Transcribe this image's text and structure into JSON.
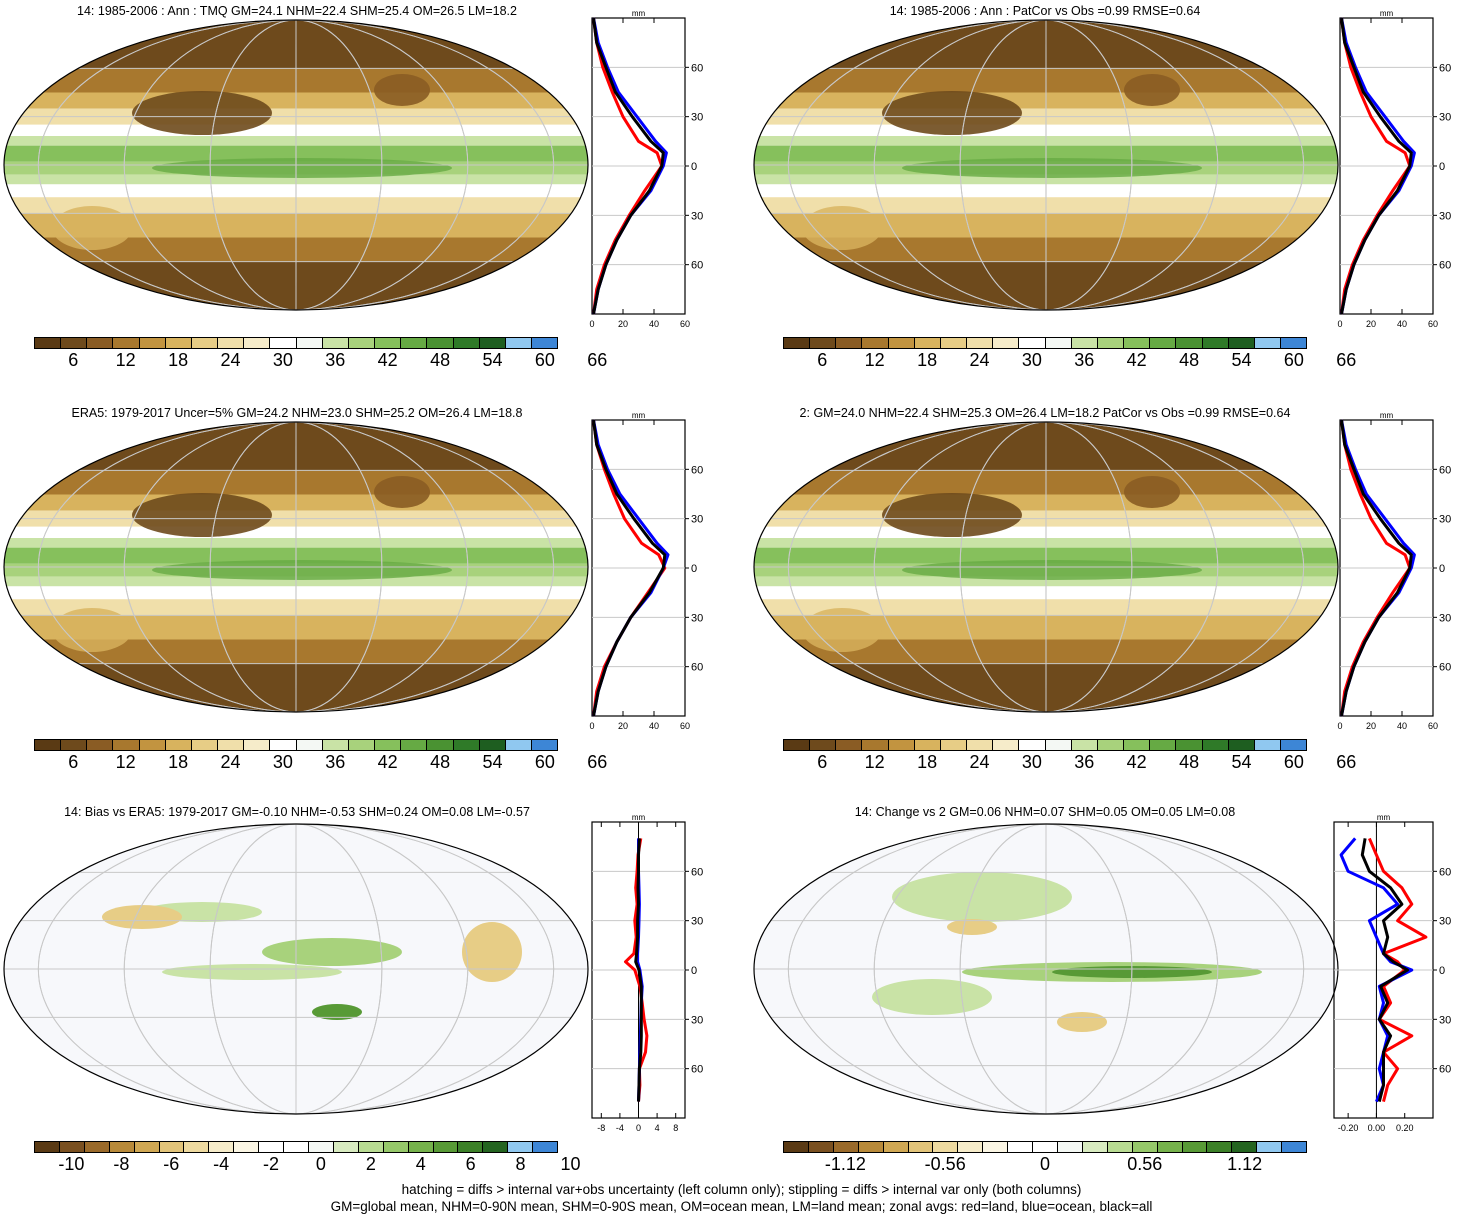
{
  "colors": {
    "land": "#ff0000",
    "ocean": "#0000ff",
    "all": "#000000"
  },
  "panels": [
    {
      "title": "14: 1985-2006 : Ann : TMQ GM=24.1 NHM=22.4 SHM=25.4 OM=26.5 LM=18.2",
      "colorbar_labels": [
        "6",
        "12",
        "18",
        "24",
        "30",
        "36",
        "42",
        "48",
        "54",
        "60",
        "66"
      ],
      "zonal": {
        "unit": "mm",
        "xticks": [
          "0",
          "20",
          "40",
          "60"
        ],
        "yticks": [
          "60N",
          "30N",
          "0",
          "30S",
          "60S"
        ]
      }
    },
    {
      "title": "14: 1985-2006 : Ann : PatCor vs Obs =0.99 RMSE=0.64",
      "colorbar_labels": [
        "6",
        "12",
        "18",
        "24",
        "30",
        "36",
        "42",
        "48",
        "54",
        "60",
        "66"
      ],
      "zonal": {
        "unit": "mm",
        "xticks": [
          "0",
          "20",
          "40",
          "60"
        ],
        "yticks": [
          "60N",
          "30N",
          "0",
          "30S",
          "60S"
        ]
      }
    },
    {
      "title": "ERA5: 1979-2017 Uncer=5% GM=24.2 NHM=23.0 SHM=25.2 OM=26.4 LM=18.8",
      "colorbar_labels": [
        "6",
        "12",
        "18",
        "24",
        "30",
        "36",
        "42",
        "48",
        "54",
        "60",
        "66"
      ],
      "zonal": {
        "unit": "mm",
        "xticks": [
          "0",
          "20",
          "40",
          "60"
        ],
        "yticks": [
          "60N",
          "30N",
          "0",
          "30S",
          "60S"
        ]
      }
    },
    {
      "title": "2: GM=24.0 NHM=22.4 SHM=25.3 OM=26.4 LM=18.2 PatCor vs Obs =0.99 RMSE=0.64",
      "colorbar_labels": [
        "6",
        "12",
        "18",
        "24",
        "30",
        "36",
        "42",
        "48",
        "54",
        "60",
        "66"
      ],
      "zonal": {
        "unit": "mm",
        "xticks": [
          "0",
          "20",
          "40",
          "60"
        ],
        "yticks": [
          "60N",
          "30N",
          "0",
          "30S",
          "60S"
        ]
      }
    },
    {
      "title": "14: Bias vs ERA5: 1979-2017 GM=-0.10 NHM=-0.53 SHM=0.24 OM=0.08 LM=-0.57",
      "colorbar_labels": [
        "-10",
        "-8",
        "-6",
        "-4",
        "-2",
        "0",
        "2",
        "4",
        "6",
        "8",
        "10"
      ],
      "zonal": {
        "unit": "mm",
        "xticks": [
          "-8",
          "-4",
          "0",
          "4",
          "8"
        ],
        "yticks": [
          "60N",
          "30N",
          "0",
          "30S",
          "60S"
        ]
      }
    },
    {
      "title": "14: Change vs 2 GM=0.06 NHM=0.07 SHM=0.05 OM=0.05 LM=0.08",
      "colorbar_labels": [
        "-1.12",
        "-0.56",
        "0",
        "0.56",
        "1.12"
      ],
      "zonal": {
        "unit": "mm",
        "xticks": [
          "-0.20",
          "0.00",
          "0.20"
        ],
        "yticks": [
          "60N",
          "30N",
          "0",
          "30S",
          "60S"
        ]
      }
    }
  ],
  "chart_data": [
    {
      "type": "line",
      "panel": "14: 1985-2006 : Ann : TMQ",
      "xlabel": "mm",
      "xlim": [
        0,
        60
      ],
      "ylim": [
        -90,
        90
      ],
      "y": [
        -90,
        -75,
        -60,
        -45,
        -30,
        -15,
        0,
        8,
        15,
        30,
        45,
        60,
        75,
        90
      ],
      "series": [
        {
          "name": "red=land",
          "values": [
            1,
            3,
            8,
            15,
            24,
            34,
            45,
            42,
            30,
            20,
            13,
            7,
            3,
            1
          ]
        },
        {
          "name": "blue=ocean",
          "values": [
            1,
            4,
            9,
            16,
            25,
            38,
            46,
            48,
            41,
            29,
            17,
            10,
            4,
            1
          ]
        },
        {
          "name": "black=all",
          "values": [
            1,
            4,
            9,
            16,
            25,
            37,
            45,
            46,
            38,
            26,
            15,
            9,
            3,
            1
          ]
        }
      ]
    },
    {
      "type": "line",
      "panel": "14: 1985-2006 : Ann : PatCor",
      "xlabel": "mm",
      "xlim": [
        0,
        60
      ],
      "ylim": [
        -90,
        90
      ],
      "y": [
        -90,
        -75,
        -60,
        -45,
        -30,
        -15,
        0,
        8,
        15,
        30,
        45,
        60,
        75,
        90
      ],
      "series": [
        {
          "name": "red=land",
          "values": [
            1,
            3,
            8,
            15,
            24,
            34,
            45,
            42,
            30,
            20,
            13,
            7,
            3,
            1
          ]
        },
        {
          "name": "blue=ocean",
          "values": [
            1,
            4,
            9,
            16,
            25,
            38,
            46,
            48,
            41,
            29,
            17,
            10,
            4,
            1
          ]
        },
        {
          "name": "black=all",
          "values": [
            1,
            4,
            9,
            16,
            25,
            37,
            45,
            46,
            38,
            26,
            15,
            9,
            3,
            1
          ]
        }
      ]
    },
    {
      "type": "line",
      "panel": "ERA5: 1979-2017",
      "xlabel": "mm",
      "xlim": [
        0,
        60
      ],
      "ylim": [
        -90,
        90
      ],
      "y": [
        -90,
        -75,
        -60,
        -45,
        -30,
        -15,
        0,
        8,
        15,
        30,
        45,
        60,
        75,
        90
      ],
      "series": [
        {
          "name": "red=land",
          "values": [
            1,
            3,
            8,
            16,
            25,
            36,
            47,
            43,
            32,
            21,
            14,
            8,
            3,
            1
          ]
        },
        {
          "name": "blue=ocean",
          "values": [
            1,
            4,
            9,
            16,
            25,
            38,
            46,
            49,
            42,
            30,
            18,
            10,
            4,
            1
          ]
        },
        {
          "name": "black=all",
          "values": [
            1,
            4,
            9,
            16,
            25,
            37,
            46,
            47,
            39,
            27,
            16,
            9,
            3,
            1
          ]
        }
      ]
    },
    {
      "type": "line",
      "panel": "2: GM=24.0",
      "xlabel": "mm",
      "xlim": [
        0,
        60
      ],
      "ylim": [
        -90,
        90
      ],
      "y": [
        -90,
        -75,
        -60,
        -45,
        -30,
        -15,
        0,
        8,
        15,
        30,
        45,
        60,
        75,
        90
      ],
      "series": [
        {
          "name": "red=land",
          "values": [
            1,
            3,
            8,
            15,
            24,
            34,
            45,
            42,
            30,
            20,
            13,
            7,
            3,
            1
          ]
        },
        {
          "name": "blue=ocean",
          "values": [
            1,
            4,
            9,
            16,
            25,
            38,
            46,
            48,
            41,
            29,
            17,
            10,
            4,
            1
          ]
        },
        {
          "name": "black=all",
          "values": [
            1,
            4,
            9,
            16,
            25,
            37,
            45,
            46,
            38,
            26,
            15,
            9,
            3,
            1
          ]
        }
      ]
    },
    {
      "type": "line",
      "panel": "14: Bias vs ERA5",
      "xlabel": "mm",
      "xlim": [
        -10,
        10
      ],
      "ylim": [
        -90,
        90
      ],
      "y": [
        -80,
        -70,
        -60,
        -50,
        -40,
        -30,
        -20,
        -10,
        0,
        5,
        10,
        20,
        30,
        40,
        50,
        60,
        70,
        80
      ],
      "series": [
        {
          "name": "red=land",
          "values": [
            0,
            0.3,
            0.2,
            1.5,
            1.8,
            1.2,
            0.8,
            0.3,
            -0.8,
            -2.8,
            -1.0,
            -0.5,
            -0.8,
            -0.3,
            -0.6,
            -0.3,
            -0.1,
            0.5
          ]
        },
        {
          "name": "blue=ocean",
          "values": [
            0,
            0.1,
            0.2,
            0.3,
            0.4,
            0.5,
            0.6,
            0.8,
            0.3,
            -0.2,
            -0.2,
            0,
            0.1,
            0.2,
            0.1,
            0,
            0,
            0
          ]
        },
        {
          "name": "black=all",
          "values": [
            0,
            0.1,
            0.2,
            0.5,
            0.6,
            0.6,
            0.6,
            0.6,
            0.1,
            -0.6,
            -0.4,
            -0.2,
            -0.2,
            0,
            -0.1,
            0,
            0,
            0.2
          ]
        }
      ]
    },
    {
      "type": "line",
      "panel": "14: Change vs 2",
      "xlabel": "mm",
      "xlim": [
        -0.3,
        0.4
      ],
      "ylim": [
        -90,
        90
      ],
      "y": [
        -80,
        -70,
        -60,
        -50,
        -40,
        -30,
        -20,
        -10,
        0,
        5,
        10,
        20,
        30,
        40,
        50,
        60,
        70,
        80
      ],
      "series": [
        {
          "name": "red=land",
          "values": [
            0.05,
            0.08,
            0.15,
            0.05,
            0.25,
            0.02,
            0.1,
            0.05,
            0.2,
            0.15,
            0.05,
            0.35,
            0.15,
            0.25,
            0.18,
            0.05,
            0.0,
            -0.05
          ]
        },
        {
          "name": "blue=ocean",
          "values": [
            0.0,
            0.05,
            0.02,
            0.05,
            0.08,
            0.02,
            0.05,
            0.02,
            0.25,
            0.1,
            0.05,
            0.0,
            -0.05,
            0.15,
            0.05,
            -0.2,
            -0.25,
            -0.15
          ]
        },
        {
          "name": "black=all",
          "values": [
            0.02,
            0.05,
            0.05,
            0.05,
            0.1,
            0.02,
            0.08,
            0.03,
            0.22,
            0.12,
            0.05,
            0.08,
            0.05,
            0.18,
            0.1,
            -0.05,
            -0.1,
            -0.08
          ]
        }
      ]
    }
  ],
  "footer": {
    "line1": "hatching = diffs > internal var+obs uncertainty (left column only); stippling = diffs > internal var only (both columns)",
    "line2": "GM=global mean, NHM=0-90N mean, SHM=0-90S mean, OM=ocean mean, LM=land mean; zonal avgs: red=land, blue=ocean, black=all"
  }
}
